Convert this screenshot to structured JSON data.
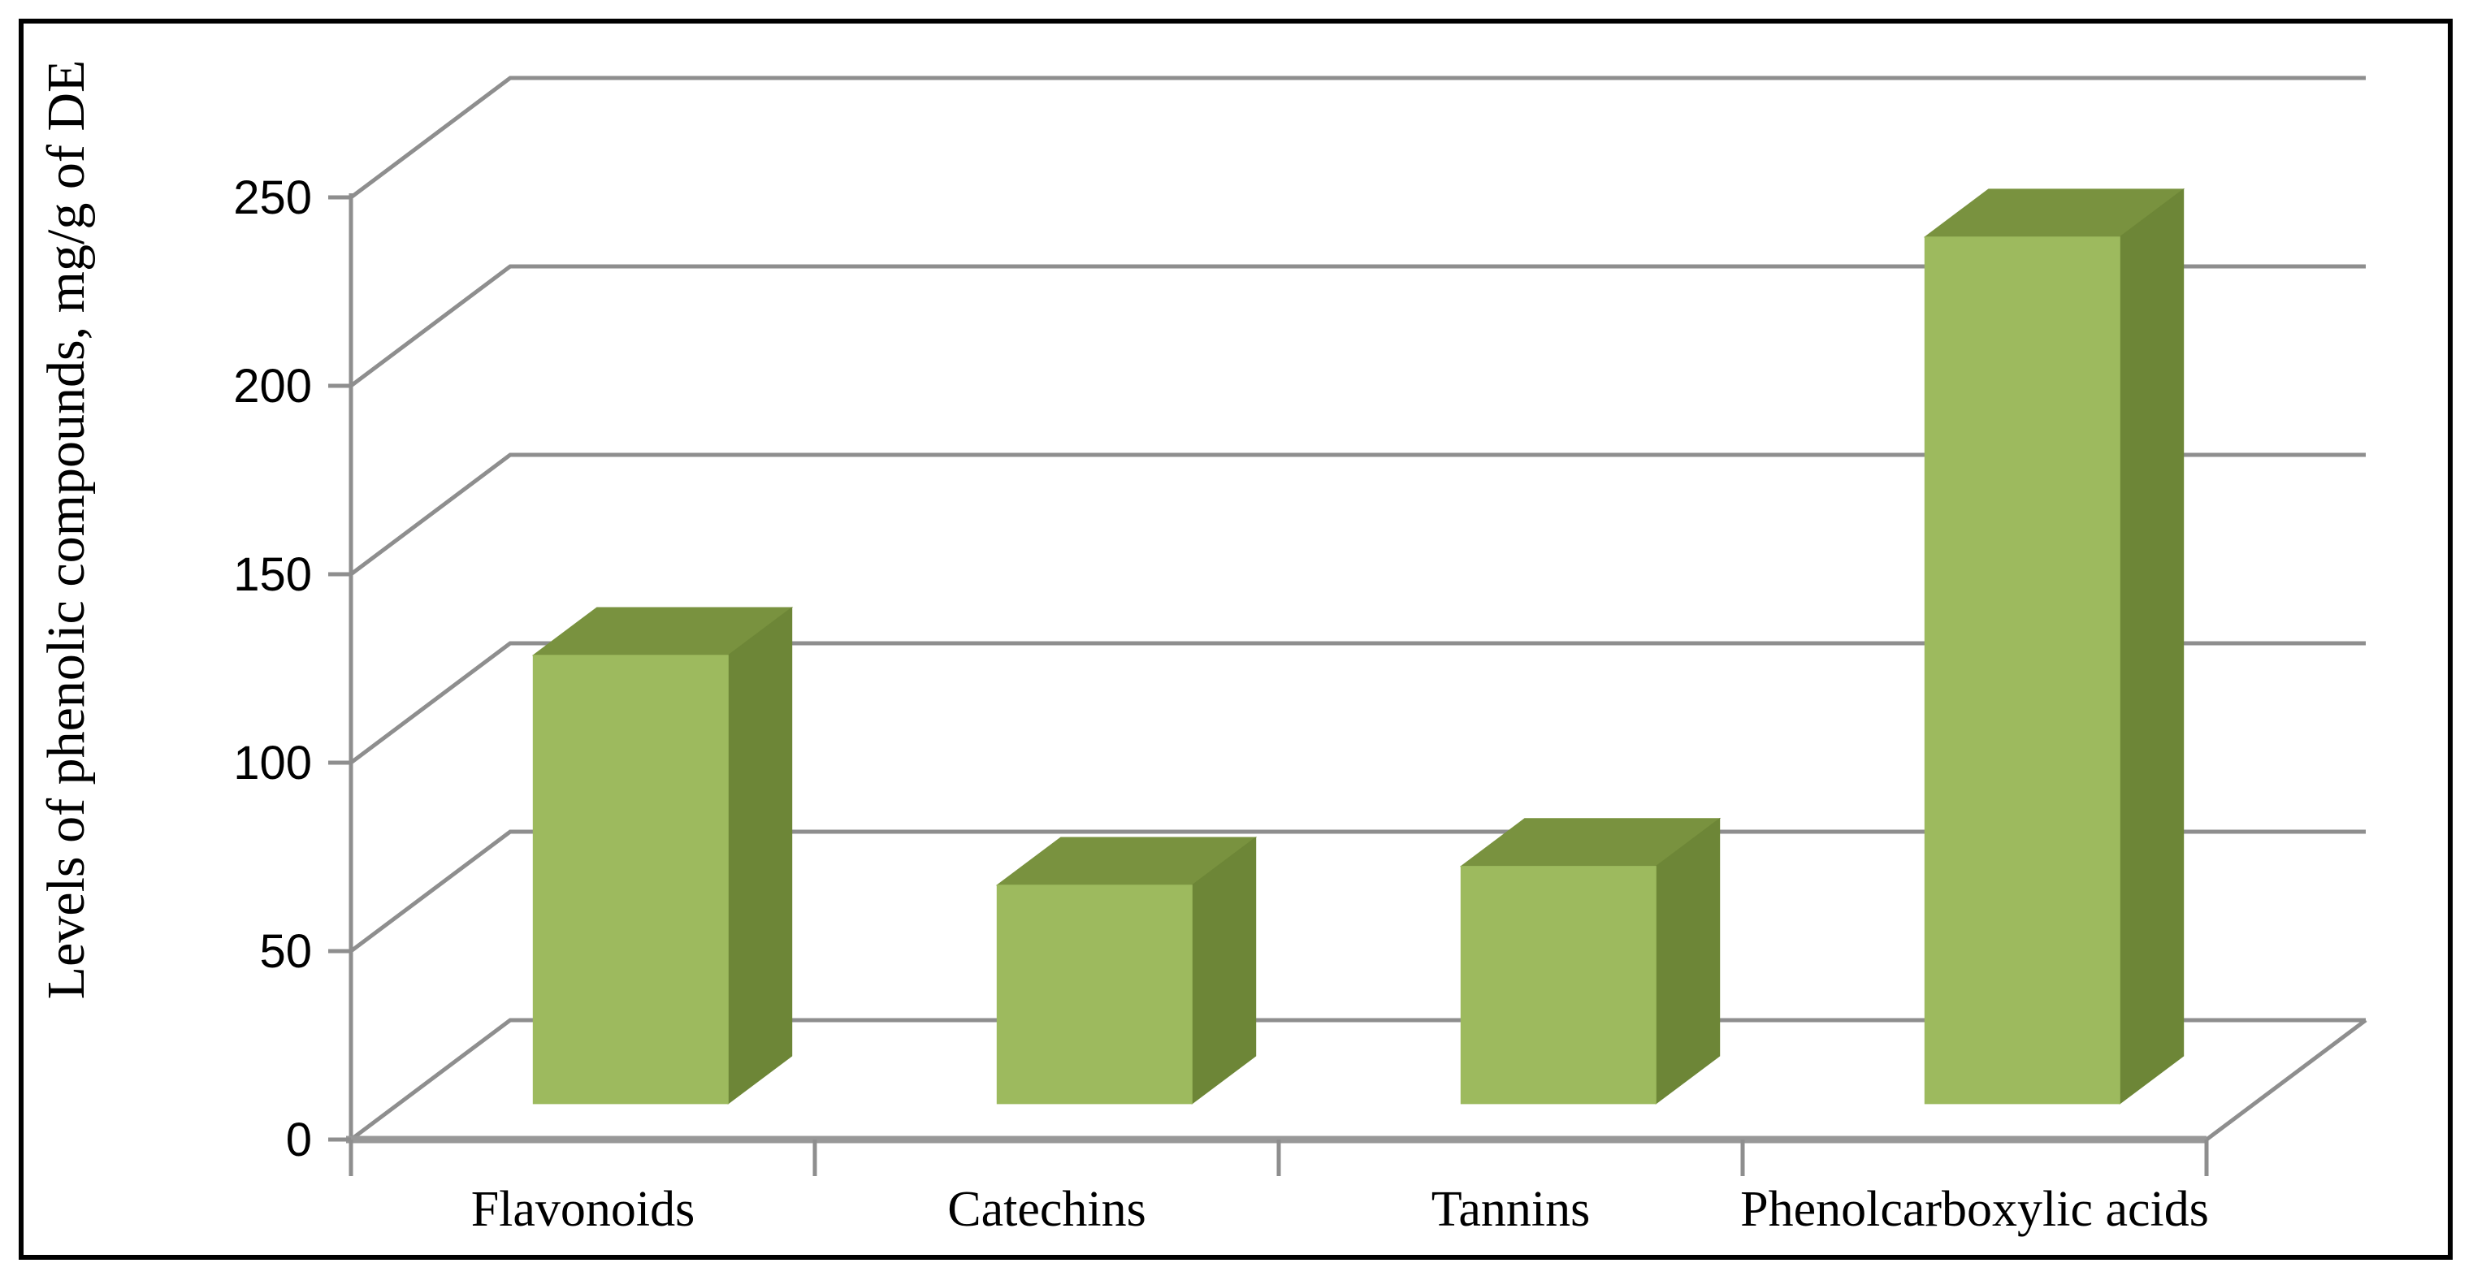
{
  "figure": {
    "background_color": "#ffffff",
    "border_color": "#000000"
  },
  "chart_data": {
    "type": "bar",
    "projection": "3d-oblique",
    "title": "",
    "xlabel": "",
    "ylabel": "Levels of phenolic compounds, mg/g of DE",
    "categories": [
      "Flavonoids",
      "Catechins",
      "Tannins",
      "Phenolcarboxylic acids"
    ],
    "values": [
      119,
      58,
      63,
      230
    ],
    "ylim": [
      0,
      250
    ],
    "yticks": [
      0,
      50,
      100,
      150,
      200,
      250
    ],
    "grid": true,
    "legend": false,
    "colors": {
      "bar_front": "#9dba5e",
      "bar_top": "#79923f",
      "bar_side": "#6d8637",
      "gridline": "#8e8e8e",
      "axis_line": "#989898",
      "text": "#000000"
    }
  }
}
